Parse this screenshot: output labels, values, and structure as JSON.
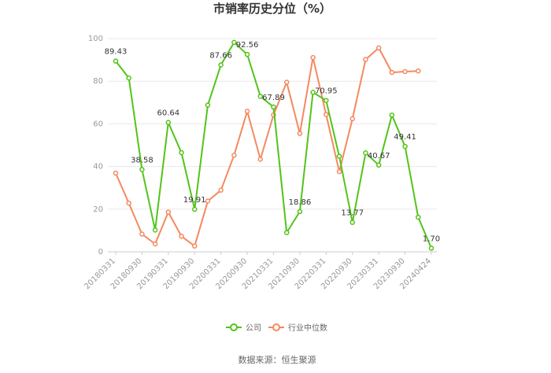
{
  "chart_data": {
    "type": "line",
    "title": "市销率历史分位（%）",
    "x_tick_labels": [
      "20180331",
      "20180930",
      "20190331",
      "20190930",
      "20200331",
      "20200930",
      "20210331",
      "20210930",
      "20220331",
      "20220930",
      "20230331",
      "20230930",
      "20240424"
    ],
    "ylim": [
      0,
      100
    ],
    "yticks": [
      0,
      20,
      40,
      60,
      80,
      100
    ],
    "grid": true,
    "legend_position": "bottom",
    "series": [
      {
        "name": "公司",
        "color": "#52c41a",
        "values": [
          89.43,
          81.5,
          38.58,
          10.2,
          60.64,
          46.5,
          19.91,
          68.8,
          87.66,
          98.2,
          92.56,
          72.9,
          67.89,
          9.0,
          18.86,
          74.8,
          70.95,
          44.8,
          13.77,
          46.4,
          40.67,
          64.1,
          49.41,
          16.2,
          1.7
        ],
        "labels": {
          "0": "89.43",
          "2": "38.58",
          "4": "60.64",
          "6": "19.91",
          "8": "87.66",
          "10": "92.56",
          "12": "67.89",
          "14": "18.86",
          "16": "70.95",
          "18": "13.77",
          "20": "40.67",
          "22": "49.41",
          "24": "1.70"
        }
      },
      {
        "name": "行业中位数",
        "color": "#f4895f",
        "values": [
          36.9,
          22.8,
          8.3,
          3.7,
          18.6,
          7.3,
          2.7,
          23.8,
          28.9,
          45.3,
          65.9,
          43.4,
          64.2,
          79.5,
          55.5,
          91.1,
          64.4,
          37.6,
          62.4,
          90.2,
          95.6,
          84.1,
          84.5,
          84.8
        ]
      }
    ]
  },
  "source_text": "数据来源：恒生聚源"
}
